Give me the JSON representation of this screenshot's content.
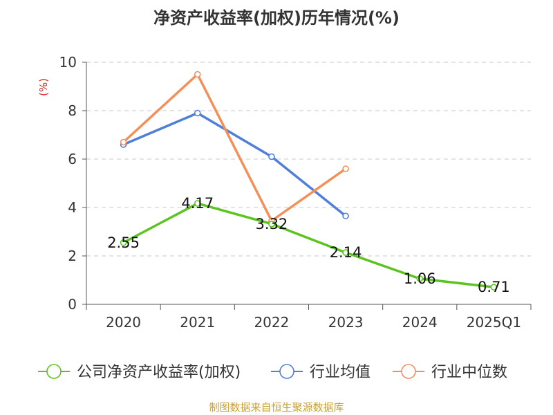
{
  "chart_data": {
    "type": "line",
    "title": "净资产收益率(加权)历年情况(%)",
    "ylabel": "(%)",
    "xlabel": "",
    "categories": [
      "2020",
      "2021",
      "2022",
      "2023",
      "2024",
      "2025Q1"
    ],
    "ylim": [
      0,
      10
    ],
    "yticks": [
      0,
      2,
      4,
      6,
      8,
      10
    ],
    "grid": true,
    "legend_position": "bottom",
    "series": [
      {
        "name": "公司净资产收益率(加权)",
        "color": "#5cc41f",
        "values": [
          2.55,
          4.17,
          3.32,
          2.14,
          1.06,
          0.71
        ],
        "labels": [
          "2.55",
          "4.17",
          "3.32",
          "2.14",
          "1.06",
          "0.71"
        ]
      },
      {
        "name": "行业均值",
        "color": "#4f7fd9",
        "values": [
          6.6,
          7.9,
          6.1,
          3.65,
          null,
          null
        ]
      },
      {
        "name": "行业中位数",
        "color": "#f58f58",
        "values": [
          6.7,
          9.5,
          3.45,
          5.6,
          null,
          null
        ]
      }
    ]
  },
  "footer": {
    "source": "制图数据来自恒生聚源数据库"
  }
}
